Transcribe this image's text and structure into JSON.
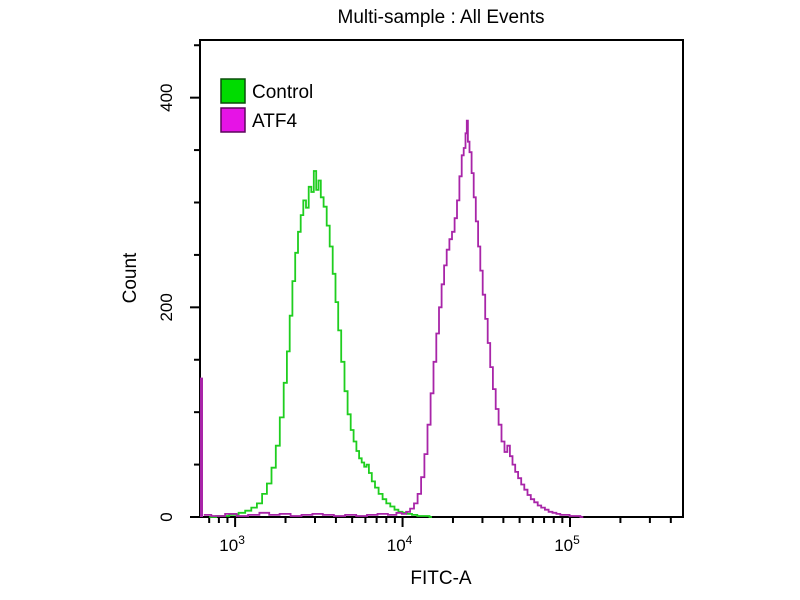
{
  "title": "Multi-sample : All Events",
  "axes": {
    "x_label": "FITC-A",
    "y_label": "Count"
  },
  "legend": {
    "items": [
      {
        "label": "Control",
        "swatch_color": "#00dc00",
        "swatch_border": "#0a4d0a"
      },
      {
        "label": "ATF4",
        "swatch_color": "#e613e6",
        "swatch_border": "#5c075c"
      }
    ]
  },
  "chart_data": {
    "type": "line",
    "subtype": "flow-cytometry-histogram-overlay",
    "title": "Multi-sample : All Events",
    "xlabel": "FITC-A",
    "ylabel": "Count",
    "x_scale": "log10",
    "xlim": [
      617,
      473000
    ],
    "ylim": [
      0,
      455
    ],
    "grid": false,
    "legend_position": "top-left",
    "x_major_ticks": [
      {
        "value": 1000,
        "exponent": 3
      },
      {
        "value": 10000,
        "exponent": 4
      },
      {
        "value": 100000,
        "exponent": 5
      }
    ],
    "y_major_ticks": [
      0,
      200,
      400
    ],
    "y_minor_step": 50,
    "series": [
      {
        "name": "Control",
        "color": "#1fce1f",
        "points": [
          [
            700,
            0
          ],
          [
            850,
            1
          ],
          [
            1000,
            2
          ],
          [
            1100,
            4
          ],
          [
            1200,
            6
          ],
          [
            1300,
            9
          ],
          [
            1400,
            13
          ],
          [
            1500,
            22
          ],
          [
            1600,
            32
          ],
          [
            1700,
            47
          ],
          [
            1800,
            68
          ],
          [
            1900,
            95
          ],
          [
            2000,
            128
          ],
          [
            2080,
            158
          ],
          [
            2160,
            192
          ],
          [
            2240,
            225
          ],
          [
            2330,
            252
          ],
          [
            2420,
            272
          ],
          [
            2510,
            288
          ],
          [
            2600,
            302
          ],
          [
            2700,
            295
          ],
          [
            2800,
            315
          ],
          [
            2900,
            310
          ],
          [
            3000,
            330
          ],
          [
            3100,
            312
          ],
          [
            3200,
            321
          ],
          [
            3300,
            305
          ],
          [
            3450,
            296
          ],
          [
            3600,
            278
          ],
          [
            3750,
            258
          ],
          [
            3900,
            232
          ],
          [
            4050,
            205
          ],
          [
            4200,
            178
          ],
          [
            4400,
            148
          ],
          [
            4600,
            120
          ],
          [
            4800,
            98
          ],
          [
            5000,
            83
          ],
          [
            5200,
            72
          ],
          [
            5400,
            63
          ],
          [
            5600,
            56
          ],
          [
            5800,
            52
          ],
          [
            6000,
            48
          ],
          [
            6200,
            50
          ],
          [
            6400,
            42
          ],
          [
            6700,
            34
          ],
          [
            7000,
            28
          ],
          [
            7400,
            22
          ],
          [
            7800,
            17
          ],
          [
            8200,
            13
          ],
          [
            8700,
            10
          ],
          [
            9200,
            7
          ],
          [
            9700,
            5
          ],
          [
            10300,
            4
          ],
          [
            11000,
            3
          ],
          [
            11800,
            2
          ],
          [
            12700,
            1
          ],
          [
            14000,
            1
          ],
          [
            15000,
            0
          ]
        ]
      },
      {
        "name": "ATF4",
        "color": "#a825a8",
        "edge_spike": {
          "x": 630,
          "count": 133
        },
        "points": [
          [
            650,
            2
          ],
          [
            800,
            1
          ],
          [
            950,
            3
          ],
          [
            1100,
            1
          ],
          [
            1300,
            2
          ],
          [
            1500,
            4
          ],
          [
            1700,
            2
          ],
          [
            2000,
            3
          ],
          [
            2300,
            1
          ],
          [
            2700,
            2
          ],
          [
            3100,
            3
          ],
          [
            3600,
            2
          ],
          [
            4200,
            1
          ],
          [
            4900,
            2
          ],
          [
            5700,
            1
          ],
          [
            6600,
            2
          ],
          [
            7600,
            3
          ],
          [
            8800,
            2
          ],
          [
            9600,
            4
          ],
          [
            10200,
            3
          ],
          [
            10800,
            5
          ],
          [
            11400,
            8
          ],
          [
            12000,
            13
          ],
          [
            12600,
            22
          ],
          [
            13200,
            38
          ],
          [
            13800,
            60
          ],
          [
            14400,
            88
          ],
          [
            15000,
            118
          ],
          [
            15600,
            148
          ],
          [
            16200,
            175
          ],
          [
            16800,
            200
          ],
          [
            17400,
            222
          ],
          [
            18000,
            240
          ],
          [
            18700,
            255
          ],
          [
            19400,
            265
          ],
          [
            20100,
            272
          ],
          [
            20800,
            285
          ],
          [
            21500,
            302
          ],
          [
            22200,
            325
          ],
          [
            22900,
            345
          ],
          [
            23500,
            352
          ],
          [
            24000,
            366
          ],
          [
            24400,
            378
          ],
          [
            24700,
            358
          ],
          [
            25500,
            348
          ],
          [
            26200,
            328
          ],
          [
            27000,
            305
          ],
          [
            27800,
            282
          ],
          [
            28700,
            258
          ],
          [
            29600,
            235
          ],
          [
            30600,
            212
          ],
          [
            31700,
            189
          ],
          [
            32800,
            166
          ],
          [
            34000,
            143
          ],
          [
            35300,
            122
          ],
          [
            36700,
            103
          ],
          [
            38200,
            88
          ],
          [
            39800,
            72
          ],
          [
            41500,
            62
          ],
          [
            43000,
            68
          ],
          [
            44500,
            58
          ],
          [
            46200,
            50
          ],
          [
            48000,
            43
          ],
          [
            50000,
            37
          ],
          [
            52200,
            31
          ],
          [
            54500,
            26
          ],
          [
            57000,
            21
          ],
          [
            59700,
            17
          ],
          [
            62600,
            14
          ],
          [
            65700,
            11
          ],
          [
            69000,
            9
          ],
          [
            72600,
            7
          ],
          [
            76500,
            5
          ],
          [
            80700,
            4
          ],
          [
            85200,
            3
          ],
          [
            90000,
            2
          ],
          [
            96000,
            2
          ],
          [
            103000,
            1
          ],
          [
            111000,
            1
          ],
          [
            120000,
            0
          ]
        ]
      }
    ]
  }
}
